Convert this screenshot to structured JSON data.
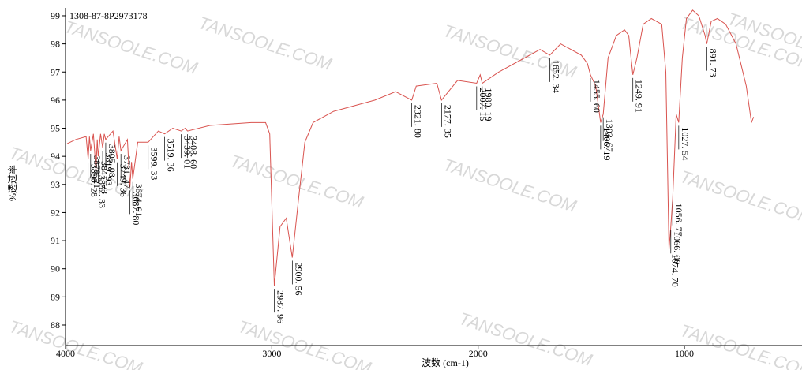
{
  "chart_data": {
    "type": "line",
    "title": "1308-87-8P2973178",
    "x_label": "波数 (cm-1)",
    "y_label": "%透过率",
    "watermark": "TANSOOLE.COM",
    "color": "#d9534f",
    "xlim": [
      4000,
      430
    ],
    "ylim": [
      87.27,
      99.28
    ],
    "xticks": [
      4000,
      3000,
      2000,
      1000
    ],
    "yticks": [
      88,
      89,
      90,
      91,
      92,
      93,
      94,
      95,
      96,
      97,
      98,
      99
    ],
    "x": [
      3992,
      3950,
      3900,
      3890.28,
      3884,
      3878.21,
      3865,
      3852.33,
      3846,
      3841.73,
      3830,
      3819.93,
      3812,
      3805.08,
      3770,
      3749.36,
      3740,
      3731.47,
      3700,
      3687.8,
      3680,
      3674.01,
      3650,
      3599.33,
      3550,
      3519.36,
      3480,
      3439.01,
      3420,
      3408.6,
      3300,
      3100,
      3030,
      3010,
      2987.96,
      2960,
      2930,
      2900.56,
      2870,
      2840,
      2800,
      2700,
      2500,
      2400,
      2321.8,
      2300,
      2200,
      2177.35,
      2100,
      2007.15,
      1990,
      1980.19,
      1900,
      1800,
      1700,
      1652.34,
      1600,
      1550,
      1500,
      1470,
      1455.6,
      1430,
      1406.19,
      1393.67,
      1370,
      1330,
      1290,
      1270,
      1249.91,
      1230,
      1200,
      1160,
      1110,
      1090,
      1074.7,
      1066,
      1056.77,
      1040,
      1027.54,
      1010,
      990,
      960,
      930,
      900,
      891.73,
      870,
      840,
      800,
      750,
      700,
      675,
      665
    ],
    "values": [
      94.45,
      94.6,
      94.7,
      93.9,
      94.7,
      94.2,
      94.8,
      93.5,
      94.6,
      94.0,
      94.8,
      94.3,
      94.8,
      94.6,
      94.9,
      93.9,
      94.7,
      94.2,
      94.6,
      92.9,
      93.8,
      93.2,
      94.5,
      94.5,
      94.9,
      94.8,
      95.0,
      94.9,
      95.0,
      94.9,
      95.1,
      95.2,
      95.2,
      94.8,
      89.4,
      91.5,
      91.8,
      90.4,
      92.5,
      94.5,
      95.2,
      95.6,
      96.0,
      96.3,
      96.0,
      96.5,
      96.6,
      96.0,
      96.7,
      96.6,
      96.9,
      96.6,
      97.0,
      97.4,
      97.8,
      97.6,
      98.0,
      97.8,
      97.6,
      97.3,
      96.9,
      96.5,
      95.2,
      95.5,
      97.5,
      98.3,
      98.5,
      98.3,
      96.9,
      97.5,
      98.7,
      98.9,
      98.7,
      97.0,
      90.7,
      91.5,
      92.5,
      95.5,
      95.2,
      97.5,
      98.9,
      99.2,
      99.0,
      98.3,
      98.0,
      98.8,
      98.9,
      98.7,
      98.0,
      96.5,
      95.2,
      95.4
    ],
    "peaks": {
      "x": [
        3890.28,
        3878.21,
        3852.33,
        3841.73,
        3819.93,
        3805.08,
        3749.36,
        3731.47,
        3687.8,
        3674.01,
        3599.33,
        3519.36,
        3439.01,
        3408.6,
        2987.96,
        2900.56,
        2321.8,
        2177.35,
        2007.15,
        1980.19,
        1652.34,
        1455.6,
        1406.19,
        1393.67,
        1249.91,
        1074.7,
        1066,
        1056.77,
        1027.54,
        891.73
      ],
      "labels": [
        "3890. 28",
        "3878. 21",
        "3852. 33",
        "3841. 73",
        "3819. 93",
        "3805. 08",
        "3749. 36",
        "3731. 47",
        "3687. 80",
        "3674. 01",
        "3599. 33",
        "3519. 36",
        "3439. 01",
        "3408. 60",
        "2987. 96",
        "2900. 56",
        "2321. 80",
        "2177. 35",
        "2007. 15",
        "1980. 19",
        "1652. 34",
        "1455. 60",
        "1406. 19",
        "1393. 67",
        "1249. 91",
        "1074. 70",
        "1066. 00",
        "1056. 77",
        "1027. 54",
        "891. 73"
      ]
    }
  }
}
